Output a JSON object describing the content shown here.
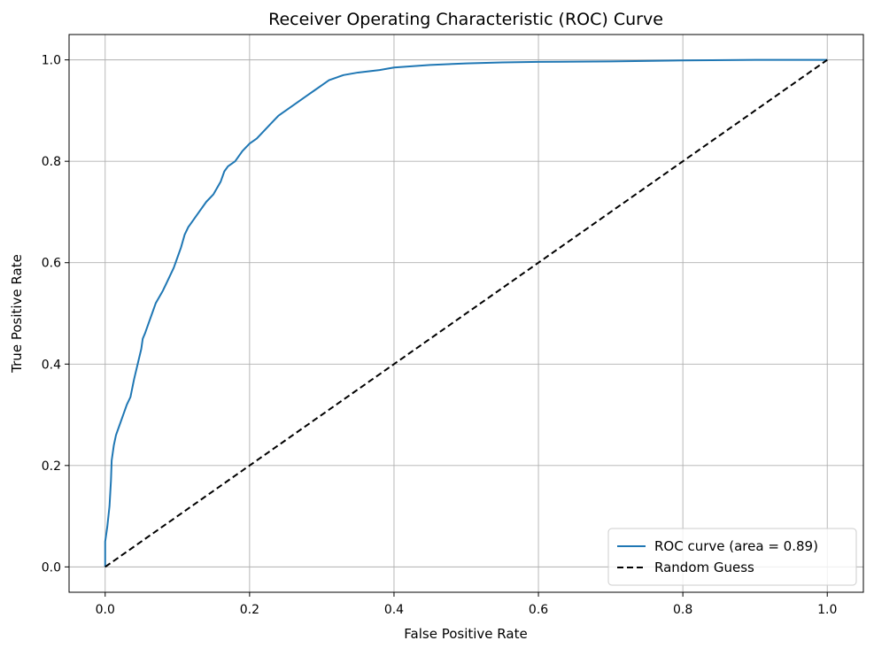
{
  "chart_data": {
    "type": "line",
    "title": "Receiver Operating Characteristic (ROC) Curve",
    "xlabel": "False Positive Rate",
    "ylabel": "True Positive Rate",
    "xlim": [
      -0.05,
      1.05
    ],
    "ylim": [
      -0.05,
      1.05
    ],
    "xticks": [
      0.0,
      0.2,
      0.4,
      0.6,
      0.8,
      1.0
    ],
    "yticks": [
      0.0,
      0.2,
      0.4,
      0.6,
      0.8,
      1.0
    ],
    "xtick_labels": [
      "0.0",
      "0.2",
      "0.4",
      "0.6",
      "0.8",
      "1.0"
    ],
    "ytick_labels": [
      "0.0",
      "0.2",
      "0.4",
      "0.6",
      "0.8",
      "1.0"
    ],
    "grid": true,
    "legend_position": "lower-right",
    "series": [
      {
        "name": "ROC curve (area = 0.89)",
        "color": "#1f77b4",
        "line_style": "solid",
        "x": [
          0.0,
          0.0,
          0.003,
          0.006,
          0.008,
          0.009,
          0.012,
          0.015,
          0.02,
          0.025,
          0.03,
          0.035,
          0.04,
          0.045,
          0.05,
          0.052,
          0.055,
          0.06,
          0.065,
          0.07,
          0.08,
          0.085,
          0.09,
          0.095,
          0.1,
          0.105,
          0.11,
          0.115,
          0.12,
          0.125,
          0.13,
          0.14,
          0.15,
          0.16,
          0.165,
          0.17,
          0.18,
          0.19,
          0.2,
          0.21,
          0.22,
          0.23,
          0.24,
          0.25,
          0.26,
          0.27,
          0.28,
          0.29,
          0.3,
          0.31,
          0.32,
          0.33,
          0.35,
          0.38,
          0.4,
          0.45,
          0.5,
          0.55,
          0.6,
          0.7,
          0.8,
          0.9,
          1.0
        ],
        "y": [
          0.0,
          0.05,
          0.08,
          0.12,
          0.17,
          0.21,
          0.24,
          0.26,
          0.28,
          0.3,
          0.32,
          0.335,
          0.37,
          0.4,
          0.43,
          0.45,
          0.46,
          0.48,
          0.5,
          0.52,
          0.545,
          0.56,
          0.575,
          0.59,
          0.61,
          0.63,
          0.655,
          0.67,
          0.68,
          0.69,
          0.7,
          0.72,
          0.735,
          0.76,
          0.78,
          0.79,
          0.8,
          0.82,
          0.835,
          0.845,
          0.86,
          0.875,
          0.89,
          0.9,
          0.91,
          0.92,
          0.93,
          0.94,
          0.95,
          0.96,
          0.965,
          0.97,
          0.975,
          0.98,
          0.985,
          0.99,
          0.993,
          0.995,
          0.996,
          0.997,
          0.999,
          1.0,
          1.0
        ]
      },
      {
        "name": "Random Guess",
        "color": "#000000",
        "line_style": "dashed",
        "x": [
          0.0,
          1.0
        ],
        "y": [
          0.0,
          1.0
        ]
      }
    ]
  }
}
